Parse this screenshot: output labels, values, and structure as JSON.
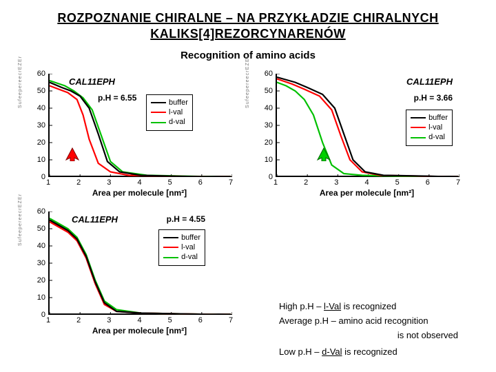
{
  "title_line1": "ROZPOZNANIE CHIRALNE – NA PRZYKŁADZIE CHIRALNYCH",
  "title_line2": "KALIKS[4]REZORCYNARENÓW",
  "subtitle": "Recognition of amino acids",
  "x_axis_label": "Area per molecule [nm²]",
  "y_axis_overlay": "S u f e e p e r e e c r E Z E r ",
  "colors": {
    "buffer": "#000000",
    "lval": "#ff0000",
    "dval": "#00c000",
    "arrow_tl_fill": "#ff0000",
    "arrow_tl_stroke": "#800000",
    "arrow_tr_fill": "#00d000",
    "arrow_tr_stroke": "#006600"
  },
  "y_ticks": [
    0,
    10,
    20,
    30,
    40,
    50,
    60
  ],
  "x_ticks": [
    1,
    2,
    3,
    4,
    5,
    6,
    7
  ],
  "charts": {
    "tl": {
      "title": "CAL11EPH",
      "ph": "p.H = 6.55",
      "series": {
        "buffer": [
          [
            1.0,
            55
          ],
          [
            1.4,
            52
          ],
          [
            1.7,
            50
          ],
          [
            2.0,
            47
          ],
          [
            2.3,
            40
          ],
          [
            2.6,
            25
          ],
          [
            2.9,
            9
          ],
          [
            3.3,
            3
          ],
          [
            4.0,
            1
          ],
          [
            5.0,
            0.5
          ],
          [
            7.0,
            0
          ]
        ],
        "lval": [
          [
            1.0,
            53
          ],
          [
            1.3,
            51
          ],
          [
            1.6,
            49
          ],
          [
            1.9,
            45
          ],
          [
            2.1,
            36
          ],
          [
            2.3,
            22
          ],
          [
            2.6,
            8
          ],
          [
            3.0,
            3
          ],
          [
            3.6,
            1
          ],
          [
            5.0,
            0.5
          ],
          [
            7.0,
            0
          ]
        ],
        "dval": [
          [
            1.0,
            56
          ],
          [
            1.5,
            53
          ],
          [
            1.8,
            50
          ],
          [
            2.1,
            46
          ],
          [
            2.4,
            39
          ],
          [
            2.7,
            24
          ],
          [
            3.0,
            9
          ],
          [
            3.4,
            3
          ],
          [
            4.2,
            1
          ],
          [
            5.5,
            0.5
          ],
          [
            7.0,
            0
          ]
        ]
      }
    },
    "tr": {
      "title": "CAL11EPH",
      "ph": "p.H = 3.66",
      "series": {
        "buffer": [
          [
            1.0,
            58
          ],
          [
            1.6,
            55
          ],
          [
            2.0,
            52
          ],
          [
            2.5,
            48
          ],
          [
            2.9,
            40
          ],
          [
            3.2,
            25
          ],
          [
            3.5,
            10
          ],
          [
            3.9,
            3
          ],
          [
            4.5,
            1
          ],
          [
            6.0,
            0.5
          ],
          [
            7.0,
            0
          ]
        ],
        "lval": [
          [
            1.0,
            57
          ],
          [
            1.5,
            54
          ],
          [
            1.9,
            51
          ],
          [
            2.4,
            47
          ],
          [
            2.8,
            39
          ],
          [
            3.1,
            24
          ],
          [
            3.4,
            10
          ],
          [
            3.8,
            3
          ],
          [
            4.4,
            1
          ],
          [
            5.8,
            0.5
          ],
          [
            7.0,
            0
          ]
        ],
        "dval": [
          [
            1.0,
            55
          ],
          [
            1.3,
            53
          ],
          [
            1.6,
            50
          ],
          [
            1.9,
            45
          ],
          [
            2.2,
            36
          ],
          [
            2.5,
            20
          ],
          [
            2.8,
            7
          ],
          [
            3.2,
            2
          ],
          [
            3.8,
            1
          ],
          [
            5.0,
            0.5
          ],
          [
            7.0,
            0
          ]
        ]
      }
    },
    "bl": {
      "title": "CAL11EPH",
      "ph": "p.H = 4.55",
      "series": {
        "buffer": [
          [
            1.0,
            55
          ],
          [
            1.3,
            52
          ],
          [
            1.6,
            49
          ],
          [
            1.9,
            44
          ],
          [
            2.2,
            34
          ],
          [
            2.5,
            19
          ],
          [
            2.8,
            7
          ],
          [
            3.2,
            2
          ],
          [
            4.0,
            1
          ],
          [
            5.5,
            0.5
          ],
          [
            7.0,
            0
          ]
        ],
        "lval": [
          [
            1.0,
            54
          ],
          [
            1.3,
            51
          ],
          [
            1.6,
            48
          ],
          [
            1.9,
            43
          ],
          [
            2.2,
            33
          ],
          [
            2.5,
            18
          ],
          [
            2.8,
            6
          ],
          [
            3.2,
            2
          ],
          [
            4.0,
            1
          ],
          [
            5.5,
            0.5
          ],
          [
            7.0,
            0
          ]
        ],
        "dval": [
          [
            1.0,
            56
          ],
          [
            1.3,
            53
          ],
          [
            1.6,
            50
          ],
          [
            1.9,
            45
          ],
          [
            2.2,
            35
          ],
          [
            2.5,
            20
          ],
          [
            2.8,
            8
          ],
          [
            3.2,
            3
          ],
          [
            4.0,
            1
          ],
          [
            5.5,
            0.5
          ],
          [
            7.0,
            0
          ]
        ]
      }
    }
  },
  "legend": {
    "buffer": "buffer",
    "lval": "l-val",
    "dval": "d-val"
  },
  "notes": {
    "line1a": "High p.H – ",
    "line1b": "l-Val",
    "line1c": " is recognized",
    "line2": "Average p.H – amino acid recognition",
    "line3": "is not observed",
    "line4a": "Low p.H – ",
    "line4b": "d-Val",
    "line4c": " is recognized"
  }
}
